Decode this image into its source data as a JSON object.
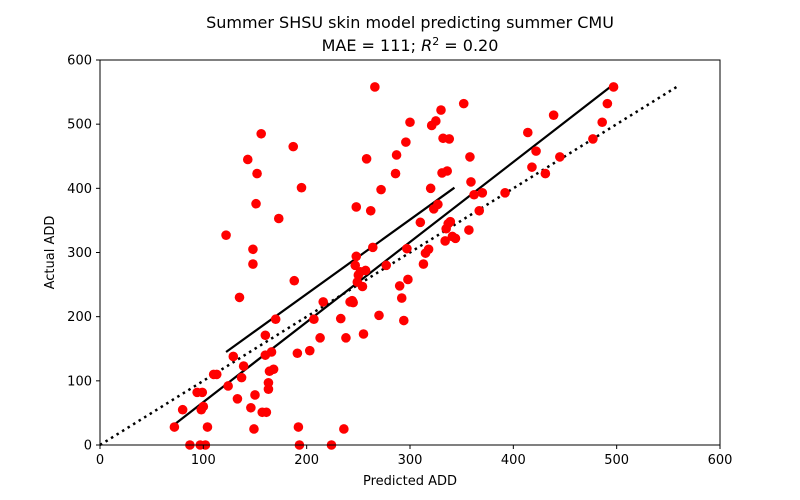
{
  "chart_data": {
    "type": "scatter",
    "title": "Summer SHSU skin model predicting summer CMU",
    "subtitle": "MAE = 111; R² = 0.20",
    "xlabel": "Predicted ADD",
    "ylabel": "Actual ADD",
    "xlim": [
      0,
      600
    ],
    "ylim": [
      0,
      600
    ],
    "xticks": [
      "0",
      "100",
      "200",
      "300",
      "400",
      "500",
      "600"
    ],
    "yticks": [
      "0",
      "100",
      "200",
      "300",
      "400",
      "500",
      "600"
    ],
    "grid": false,
    "points": [
      [
        72,
        28
      ],
      [
        80,
        55
      ],
      [
        87,
        0
      ],
      [
        94,
        82
      ],
      [
        97,
        0
      ],
      [
        98,
        55
      ],
      [
        99,
        82
      ],
      [
        100,
        60
      ],
      [
        102,
        0
      ],
      [
        104,
        28
      ],
      [
        110,
        110
      ],
      [
        113,
        110
      ],
      [
        122,
        327
      ],
      [
        124,
        92
      ],
      [
        129,
        138
      ],
      [
        133,
        72
      ],
      [
        135,
        230
      ],
      [
        137,
        105
      ],
      [
        139,
        123
      ],
      [
        143,
        445
      ],
      [
        146,
        58
      ],
      [
        148,
        305
      ],
      [
        148,
        282
      ],
      [
        149,
        25
      ],
      [
        150,
        78
      ],
      [
        151,
        376
      ],
      [
        152,
        423
      ],
      [
        156,
        485
      ],
      [
        157,
        51
      ],
      [
        160,
        140
      ],
      [
        160,
        171
      ],
      [
        161,
        51
      ],
      [
        163,
        87
      ],
      [
        163,
        97
      ],
      [
        164,
        115
      ],
      [
        166,
        145
      ],
      [
        168,
        118
      ],
      [
        170,
        196
      ],
      [
        173,
        353
      ],
      [
        187,
        465
      ],
      [
        188,
        256
      ],
      [
        191,
        143
      ],
      [
        192,
        28
      ],
      [
        193,
        0
      ],
      [
        195,
        401
      ],
      [
        203,
        147
      ],
      [
        207,
        196
      ],
      [
        213,
        167
      ],
      [
        216,
        223
      ],
      [
        224,
        0
      ],
      [
        233,
        197
      ],
      [
        236,
        25
      ],
      [
        238,
        167
      ],
      [
        242,
        223
      ],
      [
        244,
        225
      ],
      [
        245,
        222
      ],
      [
        247,
        280
      ],
      [
        248,
        294
      ],
      [
        248,
        371
      ],
      [
        249,
        254
      ],
      [
        250,
        265
      ],
      [
        252,
        270
      ],
      [
        254,
        247
      ],
      [
        255,
        173
      ],
      [
        257,
        272
      ],
      [
        258,
        446
      ],
      [
        262,
        365
      ],
      [
        264,
        308
      ],
      [
        266,
        558
      ],
      [
        270,
        202
      ],
      [
        272,
        398
      ],
      [
        277,
        280
      ],
      [
        286,
        423
      ],
      [
        287,
        452
      ],
      [
        290,
        248
      ],
      [
        292,
        229
      ],
      [
        294,
        194
      ],
      [
        296,
        472
      ],
      [
        297,
        306
      ],
      [
        298,
        258
      ],
      [
        300,
        503
      ],
      [
        310,
        347
      ],
      [
        313,
        282
      ],
      [
        315,
        299
      ],
      [
        318,
        305
      ],
      [
        320,
        400
      ],
      [
        321,
        498
      ],
      [
        323,
        368
      ],
      [
        325,
        505
      ],
      [
        327,
        375
      ],
      [
        330,
        522
      ],
      [
        331,
        424
      ],
      [
        332,
        478
      ],
      [
        334,
        318
      ],
      [
        335,
        337
      ],
      [
        336,
        427
      ],
      [
        337,
        345
      ],
      [
        338,
        477
      ],
      [
        339,
        348
      ],
      [
        341,
        325
      ],
      [
        344,
        322
      ],
      [
        352,
        532
      ],
      [
        357,
        335
      ],
      [
        358,
        449
      ],
      [
        359,
        410
      ],
      [
        362,
        390
      ],
      [
        367,
        365
      ],
      [
        370,
        393
      ],
      [
        392,
        393
      ],
      [
        414,
        487
      ],
      [
        418,
        433
      ],
      [
        422,
        458
      ],
      [
        431,
        423
      ],
      [
        439,
        514
      ],
      [
        445,
        449
      ],
      [
        477,
        477
      ],
      [
        486,
        503
      ],
      [
        491,
        532
      ],
      [
        497,
        558
      ]
    ],
    "fit_lines": [
      {
        "style": "solid",
        "x": [
          122,
          343
        ],
        "y": [
          145,
          401
        ]
      },
      {
        "style": "solid",
        "x": [
          72,
          497
        ],
        "y": [
          32,
          562
        ]
      },
      {
        "style": "dotted",
        "x": [
          0,
          560
        ],
        "y": [
          0,
          560
        ]
      }
    ],
    "point_color": "#ff0000",
    "line_color": "#000000"
  }
}
